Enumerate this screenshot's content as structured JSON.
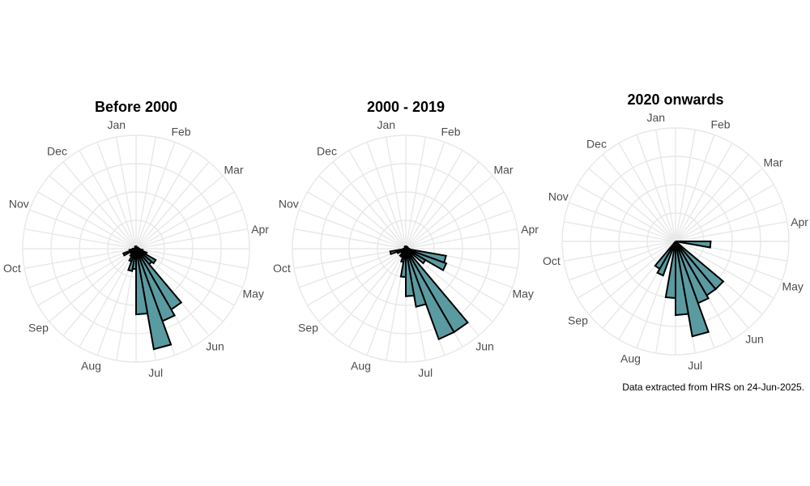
{
  "caption": "Data extracted from HRS on 24-Jun-2025.",
  "chart_data": {
    "type": "polar-bar",
    "bar_color": "#5a9ba1",
    "bar_outline": "#000000",
    "grid_color": "#e8e8e8",
    "grid": true,
    "angular_labels": [
      "Jan",
      "Feb",
      "Mar",
      "Apr",
      "May",
      "Jun",
      "Jul",
      "Aug",
      "Sep",
      "Oct",
      "Nov",
      "Dec"
    ],
    "panels": [
      {
        "title": "Before 2000",
        "months": [
          {
            "label": "Jan",
            "values": [
              0.02,
              0.01,
              0.01
            ]
          },
          {
            "label": "Feb",
            "values": [
              0.01,
              0.01,
              0.01
            ]
          },
          {
            "label": "Mar",
            "values": [
              0.02,
              0.02,
              0.02
            ]
          },
          {
            "label": "Apr",
            "values": [
              0.03,
              0.06,
              0.1
            ]
          },
          {
            "label": "May",
            "values": [
              0.2,
              0.18,
              0.62
            ]
          },
          {
            "label": "Jun",
            "values": [
              0.68,
              0.9,
              0.58
            ]
          },
          {
            "label": "Jul",
            "values": [
              0.18,
              0.2,
              0.12
            ]
          },
          {
            "label": "Aug",
            "values": [
              0.08,
              0.06,
              0.05
            ]
          },
          {
            "label": "Sep",
            "values": [
              0.12,
              0.06,
              0.03
            ]
          },
          {
            "label": "Oct",
            "values": [
              0.01,
              0.01,
              0.01
            ]
          },
          {
            "label": "Nov",
            "values": [
              0.01,
              0.01,
              0.01
            ]
          },
          {
            "label": "Dec",
            "values": [
              0.02,
              0.02,
              0.02
            ]
          }
        ]
      },
      {
        "title": "2000 - 2019",
        "months": [
          {
            "label": "Jan",
            "values": [
              0.02,
              0.01,
              0.02
            ]
          },
          {
            "label": "Feb",
            "values": [
              0.01,
              0.01,
              0.01
            ]
          },
          {
            "label": "Mar",
            "values": [
              0.02,
              0.02,
              0.02
            ]
          },
          {
            "label": "Apr",
            "values": [
              0.03,
              0.36,
              0.38
            ]
          },
          {
            "label": "May",
            "values": [
              0.2,
              0.05,
              0.85
            ]
          },
          {
            "label": "Jun",
            "values": [
              0.85,
              0.52,
              0.42
            ]
          },
          {
            "label": "Jul",
            "values": [
              0.25,
              0.12,
              0.08
            ]
          },
          {
            "label": "Aug",
            "values": [
              0.08,
              0.05,
              0.04
            ]
          },
          {
            "label": "Sep",
            "values": [
              0.08,
              0.14,
              0.02
            ]
          },
          {
            "label": "Oct",
            "values": [
              0.01,
              0.01,
              0.01
            ]
          },
          {
            "label": "Nov",
            "values": [
              0.01,
              0.01,
              0.01
            ]
          },
          {
            "label": "Dec",
            "values": [
              0.02,
              0.02,
              0.02
            ]
          }
        ]
      },
      {
        "title": "2020 onwards",
        "months": [
          {
            "label": "Jan",
            "values": [
              0,
              0,
              0
            ]
          },
          {
            "label": "Feb",
            "values": [
              0,
              0,
              0
            ]
          },
          {
            "label": "Mar",
            "values": [
              0,
              0,
              0
            ]
          },
          {
            "label": "Apr",
            "values": [
              0.31,
              0,
              0
            ]
          },
          {
            "label": "May",
            "values": [
              0,
              0.55,
              0.55
            ]
          },
          {
            "label": "Jun",
            "values": [
              0.58,
              0.85,
              0.65
            ]
          },
          {
            "label": "Jul",
            "values": [
              0.5,
              0,
              0.32
            ]
          },
          {
            "label": "Aug",
            "values": [
              0.28,
              0,
              0
            ]
          },
          {
            "label": "Sep",
            "values": [
              0,
              0,
              0
            ]
          },
          {
            "label": "Oct",
            "values": [
              0,
              0,
              0
            ]
          },
          {
            "label": "Nov",
            "values": [
              0,
              0,
              0
            ]
          },
          {
            "label": "Dec",
            "values": [
              0,
              0,
              0
            ]
          }
        ]
      }
    ]
  }
}
